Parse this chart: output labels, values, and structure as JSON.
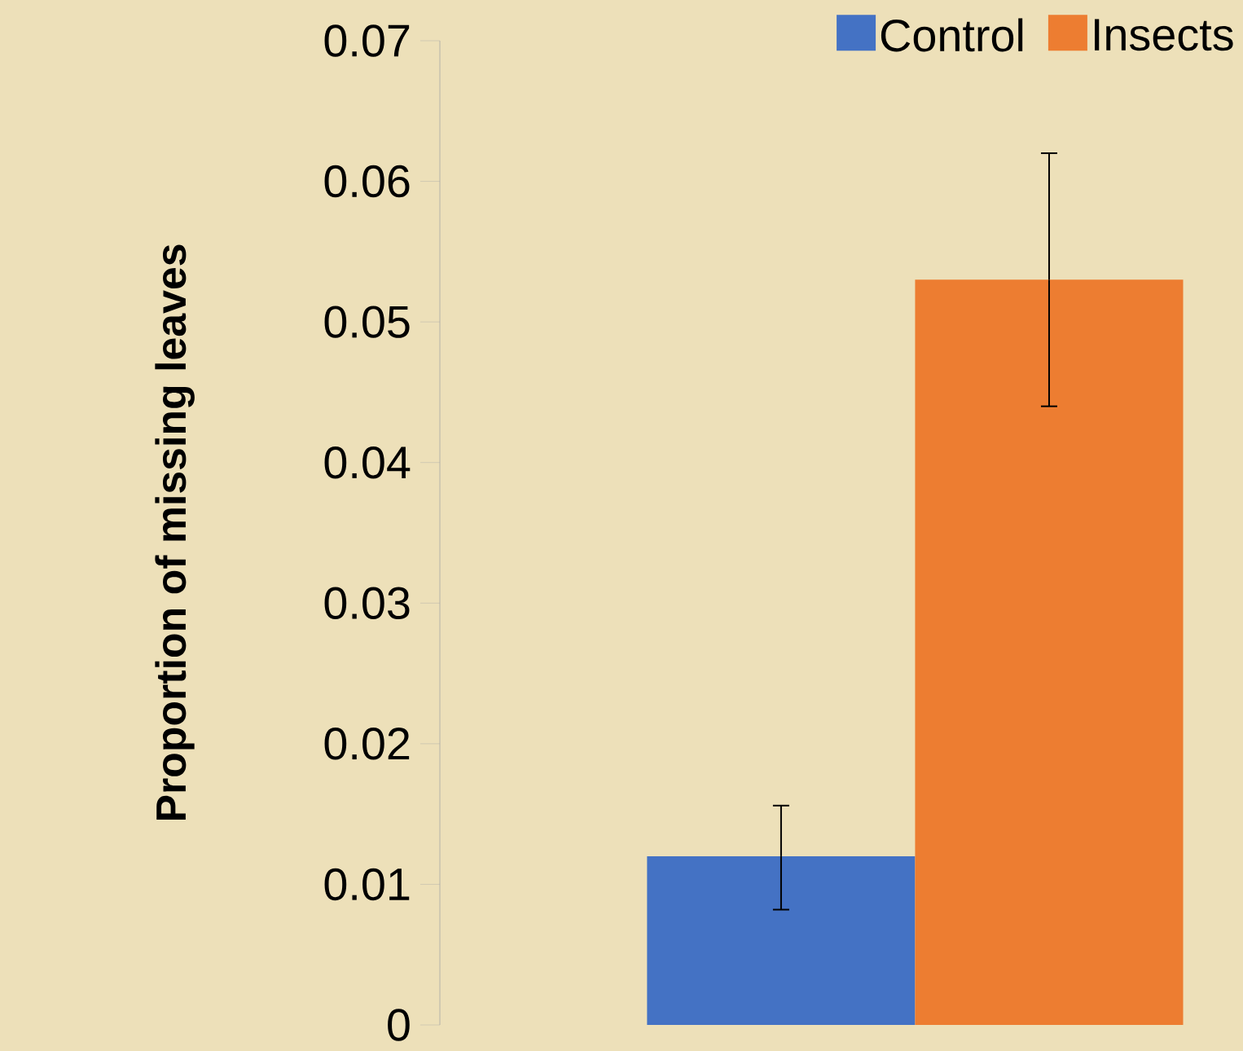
{
  "chart_data": {
    "type": "bar",
    "ylabel": "Proportion of missing leaves",
    "categories": [
      null
    ],
    "series": [
      {
        "name": "Control",
        "color": "#4472c4",
        "values": [
          0.012
        ],
        "errors": [
          [
            0.0082,
            0.0156
          ]
        ]
      },
      {
        "name": "Insects",
        "color": "#ed7d31",
        "values": [
          0.053
        ],
        "errors": [
          [
            0.044,
            0.062
          ]
        ]
      }
    ],
    "ylim": [
      0,
      0.07
    ],
    "yticks": [
      0,
      0.01,
      0.02,
      0.03,
      0.04,
      0.05,
      0.06,
      0.07
    ],
    "legend": "top right"
  }
}
